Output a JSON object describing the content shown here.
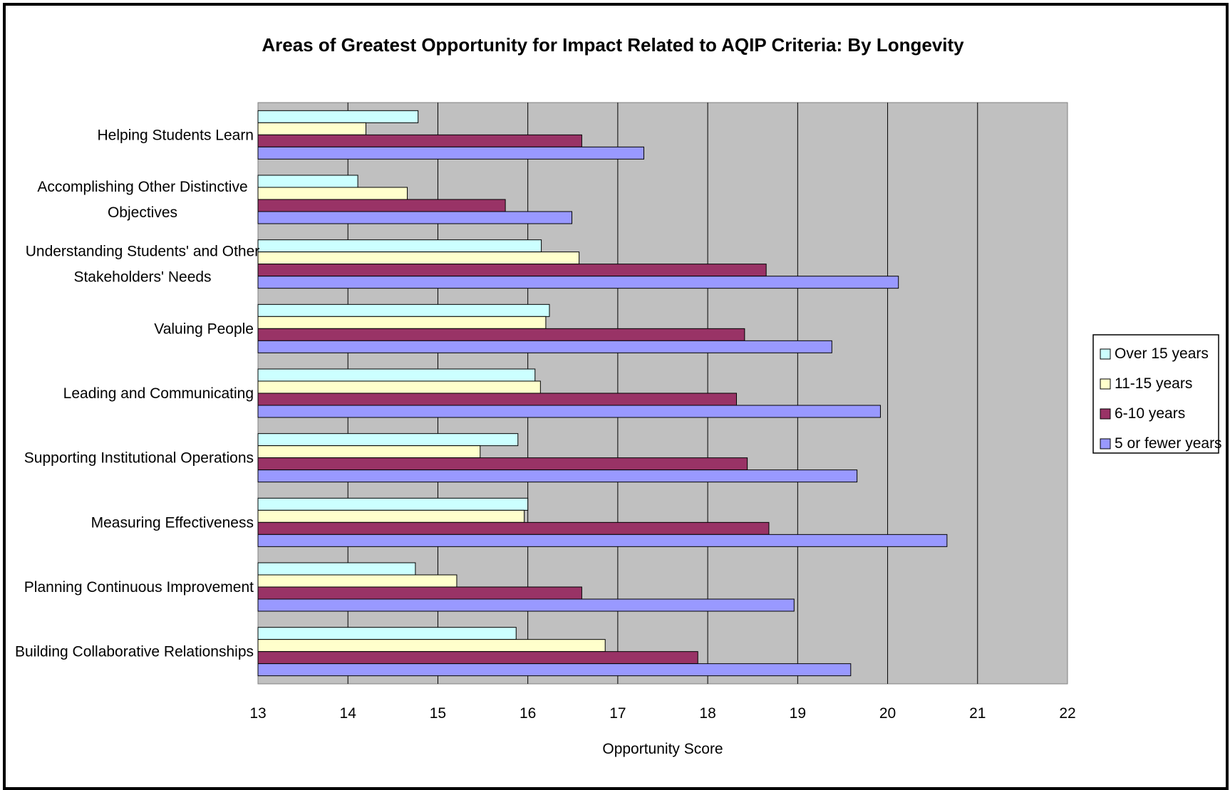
{
  "chart_data": {
    "type": "bar",
    "orientation": "horizontal",
    "title": "Areas of Greatest Opportunity for Impact Related to AQIP Criteria: By Longevity",
    "xlabel": "Opportunity Score",
    "ylabel": "",
    "xlim": [
      13,
      22
    ],
    "x_ticks": [
      13,
      14,
      15,
      16,
      17,
      18,
      19,
      20,
      21,
      22
    ],
    "grid": "vertical",
    "legend_position": "right",
    "plot_background": "#c0c0c0",
    "categories": [
      [
        "Helping Students Learn"
      ],
      [
        "Accomplishing Other Distinctive",
        "Objectives"
      ],
      [
        "Understanding Students' and Other",
        "Stakeholders' Needs"
      ],
      [
        "Valuing People"
      ],
      [
        "Leading and Communicating"
      ],
      [
        "Supporting Institutional Operations"
      ],
      [
        "Measuring Effectiveness"
      ],
      [
        "Planning Continuous Improvement"
      ],
      [
        "Building Collaborative Relationships"
      ]
    ],
    "series": [
      {
        "name": "Over 15 years",
        "color": "#ccffff",
        "values": [
          14.78,
          14.11,
          16.15,
          16.24,
          16.08,
          15.89,
          16.0,
          14.75,
          15.87
        ]
      },
      {
        "name": "11-15 years",
        "color": "#ffffcc",
        "values": [
          14.2,
          14.66,
          16.57,
          16.2,
          16.14,
          15.47,
          15.96,
          15.21,
          16.86
        ]
      },
      {
        "name": "6-10 years",
        "color": "#993366",
        "values": [
          16.6,
          15.75,
          18.65,
          18.41,
          18.32,
          18.44,
          18.68,
          16.6,
          17.89
        ]
      },
      {
        "name": "5 or fewer years",
        "color": "#9999ff",
        "values": [
          17.29,
          16.49,
          20.12,
          19.38,
          19.92,
          19.66,
          20.66,
          18.96,
          19.59
        ]
      }
    ]
  }
}
